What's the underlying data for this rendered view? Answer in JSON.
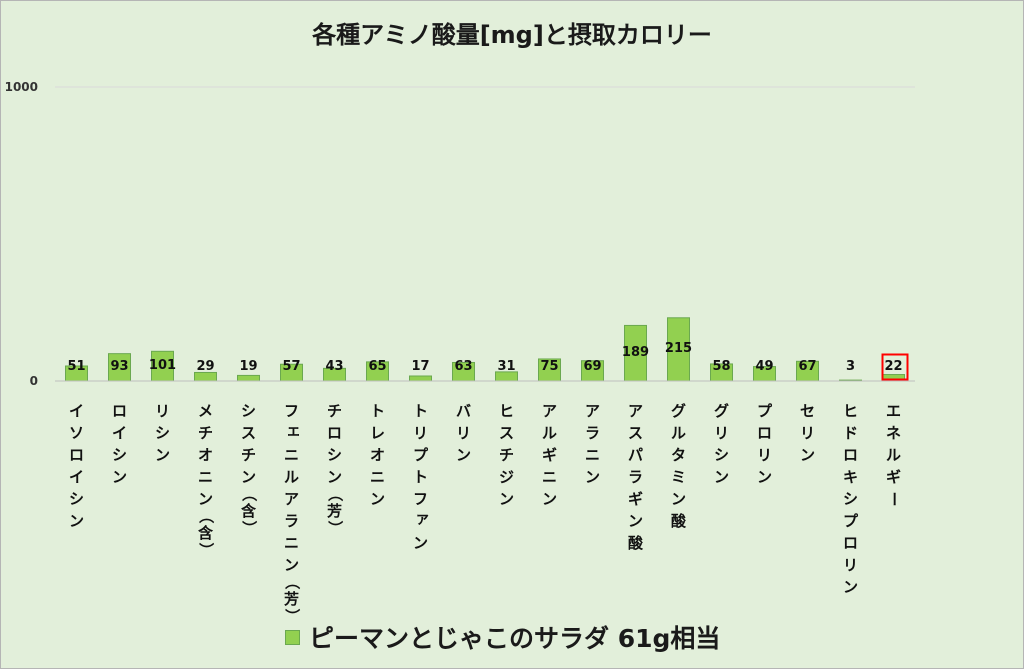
{
  "chart_data": {
    "type": "bar",
    "title": "各種アミノ酸量[mg]と摂取カロリー",
    "categories": [
      "イソロイシン",
      "ロイシン",
      "リシン",
      "メチオニン（含）",
      "シスチン（含）",
      "フェニルアラニン（芳）",
      "チロシン（芳）",
      "トレオニン",
      "トリプトファン",
      "バリン",
      "ヒスチジン",
      "アルギニン",
      "アラニン",
      "アスパラギン酸",
      "グルタミン酸",
      "グリシン",
      "プロリン",
      "セリン",
      "ヒドロキシプロリン",
      "エネルギー"
    ],
    "series": [
      {
        "name": "ピーマンとじゃこのサラダ 61g相当",
        "values": [
          51,
          93,
          101,
          29,
          19,
          57,
          43,
          65,
          17,
          63,
          31,
          75,
          69,
          189,
          215,
          58,
          49,
          67,
          3,
          22
        ]
      }
    ],
    "ylim": [
      0,
      1000
    ],
    "yticks": [
      0,
      1000
    ],
    "data_labels": true,
    "grid": true,
    "legend": "bottom",
    "highlight": {
      "index": 19,
      "color": "#ff0000"
    },
    "colors": {
      "bar": "#92d050",
      "bar_border": "#6aa84f",
      "background": "#e2efda",
      "gridline": "#d9d9d9",
      "axis": "#bfbfbf"
    }
  }
}
